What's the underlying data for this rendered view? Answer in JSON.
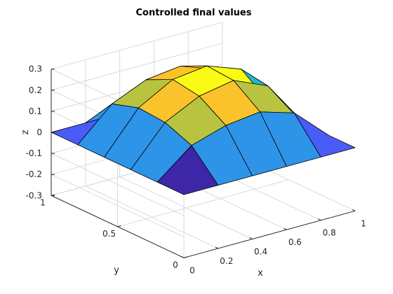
{
  "chart_data": {
    "type": "surface",
    "title": "Controlled final values",
    "xlabel": "x",
    "ylabel": "y",
    "zlabel": "z",
    "xlim": [
      0,
      1
    ],
    "ylim": [
      0,
      1
    ],
    "zlim": [
      -0.3,
      0.3
    ],
    "x": [
      0,
      0.2,
      0.4,
      0.6,
      0.8,
      1
    ],
    "y": [
      0,
      0.2,
      0.4,
      0.6,
      0.8,
      1
    ],
    "z": [
      [
        0,
        0,
        0,
        0,
        0,
        0
      ],
      [
        0,
        0.13,
        0.18,
        0.2,
        0.15,
        0
      ],
      [
        0,
        0.18,
        0.26,
        0.29,
        0.22,
        0
      ],
      [
        0,
        0.19,
        0.28,
        0.3,
        0.24,
        0
      ],
      [
        0,
        0.15,
        0.22,
        0.24,
        0.18,
        0
      ],
      [
        0,
        0,
        0,
        0,
        0,
        0
      ]
    ],
    "x_ticks": [
      "0",
      "0.2",
      "0.4",
      "0.6",
      "0.8",
      "1"
    ],
    "y_ticks": [
      "0",
      "0.5",
      "1"
    ],
    "z_ticks": [
      "-0.3",
      "-0.2",
      "-0.1",
      "0",
      "0.1",
      "0.2",
      "0.3"
    ],
    "grid": true,
    "colormap": [
      "#3e26a8",
      "#4a5cf8",
      "#2e94e8",
      "#22b8c8",
      "#3ec58b",
      "#b8c440",
      "#fbc32b",
      "#f9fb15"
    ]
  }
}
